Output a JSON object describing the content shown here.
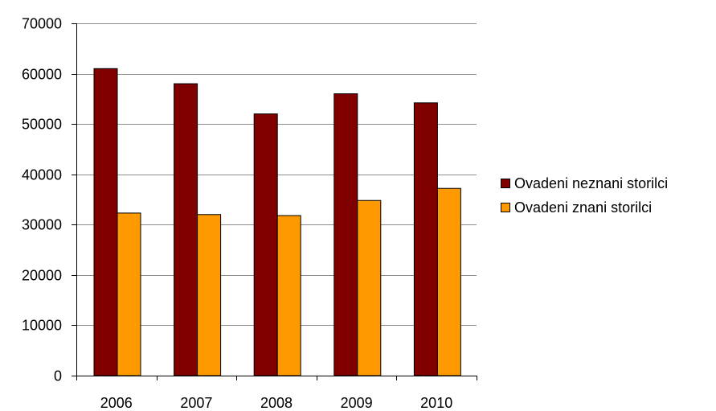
{
  "chart_data": {
    "type": "bar",
    "categories": [
      "2006",
      "2007",
      "2008",
      "2009",
      "2010"
    ],
    "series": [
      {
        "name": "Ovadeni neznani storilci",
        "color": "#800000",
        "values": [
          61000,
          58000,
          52000,
          56000,
          54200
        ]
      },
      {
        "name": "Ovadeni znani storilci",
        "color": "#FF9900",
        "values": [
          32300,
          32000,
          31800,
          34800,
          37200
        ]
      }
    ],
    "ylim": [
      0,
      70000
    ],
    "yticks": [
      "0",
      "10000",
      "20000",
      "30000",
      "40000",
      "50000",
      "60000",
      "70000"
    ],
    "grid": true,
    "legend_position": "right"
  }
}
